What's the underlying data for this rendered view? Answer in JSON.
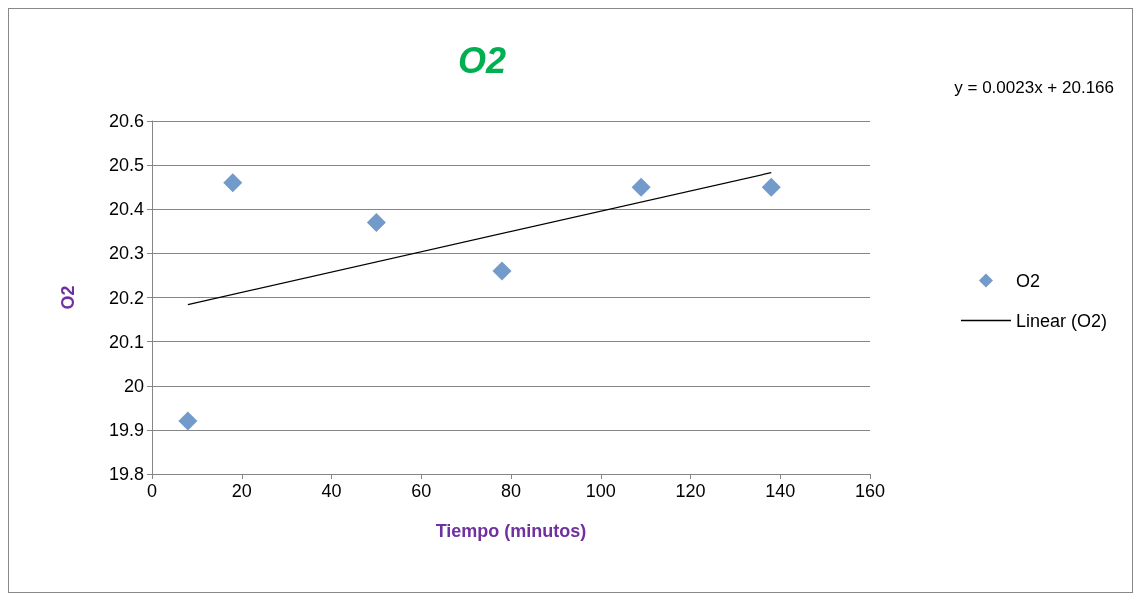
{
  "chart_data": {
    "type": "scatter",
    "title": "O2",
    "xlabel": "Tiempo (minutos)",
    "ylabel": "O2",
    "annotations": [
      "y = 0.0023x + 20.166"
    ],
    "series": [
      {
        "name": "O2",
        "color": "#4f81bd",
        "marker": "diamond",
        "x": [
          8,
          18,
          50,
          78,
          109,
          138
        ],
        "values": [
          19.92,
          20.46,
          20.37,
          20.26,
          20.45,
          20.45
        ]
      },
      {
        "name": "Linear (O2)",
        "type": "line",
        "color": "#000000",
        "marker": "none",
        "x": [
          8,
          138
        ],
        "values": [
          20.184,
          20.483
        ]
      }
    ],
    "xlim": [
      0,
      160
    ],
    "xticks": [
      0,
      20,
      40,
      60,
      80,
      100,
      120,
      140,
      160
    ],
    "ylim": [
      19.8,
      20.6
    ],
    "yticks": [
      19.8,
      19.9,
      20,
      20.1,
      20.2,
      20.3,
      20.4,
      20.5,
      20.6
    ],
    "grid": "y",
    "legend": "right"
  }
}
